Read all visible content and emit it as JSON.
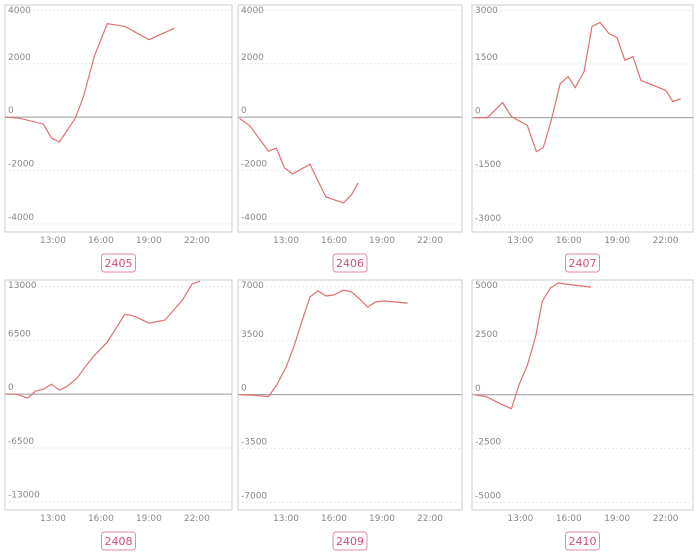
{
  "chart_data": [
    {
      "type": "line",
      "title": "2405",
      "color": "#e07070",
      "x": [
        10,
        10.9,
        12.4,
        12.9,
        13.4,
        14.4,
        14.9,
        15.6,
        16.4,
        17.5,
        19,
        20.6
      ],
      "values": [
        0,
        -40,
        -260,
        -780,
        -930,
        -40,
        750,
        2300,
        3500,
        3400,
        2900,
        3330
      ],
      "xlim": [
        10,
        24.2
      ],
      "ylim": [
        -4300,
        4200
      ],
      "xticks": [
        {
          "value": 13,
          "label": "13:00"
        },
        {
          "value": 16,
          "label": "16:00"
        },
        {
          "value": 19,
          "label": "19:00"
        },
        {
          "value": 22,
          "label": "22:00"
        }
      ],
      "yticks": [
        4000,
        2000,
        0,
        -2000,
        -4000
      ]
    },
    {
      "type": "line",
      "title": "2406",
      "color": "#e07070",
      "x": [
        10.1,
        10.75,
        11.9,
        12.4,
        12.9,
        13.4,
        14.5,
        15,
        15.5,
        16.6,
        17.1,
        17.5
      ],
      "values": [
        -50,
        -330,
        -1270,
        -1160,
        -1900,
        -2130,
        -1760,
        -2390,
        -2990,
        -3210,
        -2900,
        -2470
      ],
      "xlim": [
        10,
        24
      ],
      "ylim": [
        -4300,
        4200
      ],
      "xticks": [
        {
          "value": 13,
          "label": "13:00"
        },
        {
          "value": 16,
          "label": "16:00"
        },
        {
          "value": 19,
          "label": "19:00"
        },
        {
          "value": 22,
          "label": "22:00"
        }
      ],
      "yticks": [
        4000,
        2000,
        0,
        -2000,
        -4000
      ]
    },
    {
      "type": "line",
      "title": "2407",
      "color": "#e07070",
      "x": [
        10.16,
        10.96,
        11.89,
        12.44,
        13.43,
        13.99,
        14.42,
        14.91,
        15.47,
        15.96,
        16.4,
        16.95,
        17.44,
        17.94,
        18.49,
        18.99,
        19.48,
        19.98,
        20.47,
        22.02,
        22.45,
        22.95
      ],
      "values": [
        0,
        0,
        420,
        30,
        -220,
        -950,
        -840,
        -80,
        950,
        1150,
        840,
        1290,
        2550,
        2660,
        2350,
        2240,
        1600,
        1710,
        1040,
        760,
        450,
        530
      ],
      "xlim": [
        10,
        23.7
      ],
      "ylim": [
        -3200,
        3150
      ],
      "xticks": [
        {
          "value": 13,
          "label": "13:00"
        },
        {
          "value": 16,
          "label": "16:00"
        },
        {
          "value": 19,
          "label": "19:00"
        },
        {
          "value": 22,
          "label": "22:00"
        }
      ],
      "yticks": [
        3000,
        1500,
        0,
        -1500,
        -3000
      ]
    },
    {
      "type": "line",
      "title": "2408",
      "color": "#e07070",
      "x": [
        10.1,
        10.75,
        11.4,
        11.9,
        12.4,
        12.9,
        13.4,
        13.9,
        14.5,
        15.1,
        15.6,
        16.4,
        17.5,
        18.1,
        19,
        20,
        21.1,
        21.7,
        22.2
      ],
      "values": [
        0,
        0,
        -480,
        360,
        600,
        1210,
        480,
        970,
        1930,
        3500,
        4700,
        6290,
        9670,
        9430,
        8590,
        8950,
        11370,
        13300,
        13660
      ],
      "xlim": [
        10,
        24.2
      ],
      "ylim": [
        -14000,
        13800
      ],
      "xticks": [
        {
          "value": 13,
          "label": "13:00"
        },
        {
          "value": 16,
          "label": "16:00"
        },
        {
          "value": 19,
          "label": "19:00"
        },
        {
          "value": 22,
          "label": "22:00"
        }
      ],
      "yticks": [
        13000,
        6500,
        0,
        -6500,
        -13000
      ]
    },
    {
      "type": "line",
      "title": "2409",
      "color": "#e07070",
      "x": [
        10.1,
        11.25,
        11.9,
        12.4,
        13,
        13.5,
        14,
        14.5,
        15,
        15.5,
        16,
        16.6,
        17.1,
        17.6,
        18.1,
        18.6,
        19.1,
        20.6
      ],
      "values": [
        0,
        -65,
        -130,
        590,
        1770,
        3140,
        4780,
        6350,
        6740,
        6410,
        6480,
        6800,
        6670,
        6220,
        5690,
        6020,
        6090,
        5950
      ],
      "xlim": [
        10,
        24
      ],
      "ylim": [
        -7500,
        7450
      ],
      "xticks": [
        {
          "value": 13,
          "label": "13:00"
        },
        {
          "value": 16,
          "label": "16:00"
        },
        {
          "value": 19,
          "label": "19:00"
        },
        {
          "value": 22,
          "label": "22:00"
        }
      ],
      "yticks": [
        7000,
        3500,
        0,
        -3500,
        -7000
      ]
    },
    {
      "type": "line",
      "title": "2410",
      "color": "#e07070",
      "x": [
        10.16,
        10.9,
        11.64,
        12.44,
        12.94,
        13.43,
        13.93,
        14.36,
        14.85,
        15.35,
        15.84,
        17.38
      ],
      "values": [
        0,
        -90,
        -370,
        -650,
        510,
        1360,
        2660,
        4340,
        4950,
        5190,
        5140,
        5000
      ],
      "xlim": [
        10,
        23.7
      ],
      "ylim": [
        -5350,
        5330
      ],
      "xticks": [
        {
          "value": 13,
          "label": "13:00"
        },
        {
          "value": 16,
          "label": "16:00"
        },
        {
          "value": 19,
          "label": "19:00"
        },
        {
          "value": 22,
          "label": "22:00"
        }
      ],
      "yticks": [
        5000,
        2500,
        0,
        -2500,
        -5000
      ]
    }
  ]
}
